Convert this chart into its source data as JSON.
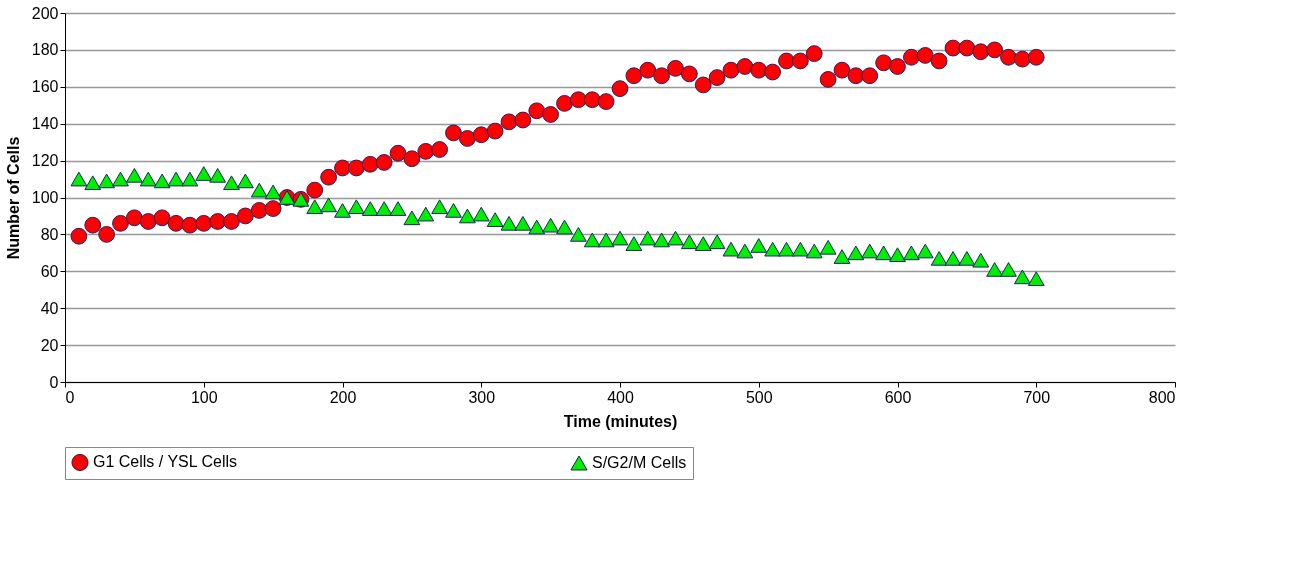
{
  "chart_data": {
    "type": "scatter",
    "xlabel": "Time (minutes)",
    "ylabel": "Number of Cells",
    "x": [
      10,
      20,
      30,
      40,
      50,
      60,
      70,
      80,
      90,
      100,
      110,
      120,
      130,
      140,
      150,
      160,
      170,
      180,
      190,
      200,
      210,
      220,
      230,
      240,
      250,
      260,
      270,
      280,
      290,
      300,
      310,
      320,
      330,
      340,
      350,
      360,
      370,
      380,
      390,
      400,
      410,
      420,
      430,
      440,
      450,
      460,
      470,
      480,
      490,
      500,
      510,
      520,
      530,
      540,
      550,
      560,
      570,
      580,
      590,
      600,
      610,
      620,
      630,
      640,
      650,
      660,
      670,
      680,
      690,
      700
    ],
    "series": [
      {
        "name": "G1 Cells / YSL Cells",
        "color": "#ff0000",
        "marker": "circle",
        "values": [
          79,
          85,
          80,
          86,
          89,
          87,
          89,
          86,
          85,
          86,
          87,
          87,
          90,
          93,
          94,
          100,
          99,
          104,
          111,
          116,
          116,
          118,
          119,
          124,
          121,
          125,
          126,
          135,
          132,
          134,
          136,
          141,
          142,
          147,
          145,
          151,
          153,
          153,
          152,
          159,
          166,
          169,
          166,
          170,
          167,
          161,
          165,
          169,
          171,
          169,
          168,
          174,
          174,
          178,
          164,
          169,
          166,
          166,
          173,
          171,
          176,
          177,
          174,
          181,
          181,
          179,
          180,
          176,
          175,
          176
        ]
      },
      {
        "name": "S/G2/M Cells",
        "color": "#00ee00",
        "marker": "triangle",
        "values": [
          110,
          108,
          109,
          110,
          112,
          110,
          109,
          110,
          110,
          113,
          112,
          108,
          109,
          104,
          103,
          100,
          99,
          95,
          96,
          93,
          95,
          94,
          94,
          94,
          89,
          91,
          95,
          93,
          90,
          91,
          88,
          86,
          86,
          84,
          85,
          84,
          80,
          77,
          77,
          78,
          75,
          78,
          77,
          78,
          76,
          75,
          76,
          72,
          71,
          74,
          72,
          72,
          72,
          71,
          73,
          68,
          70,
          71,
          70,
          69,
          70,
          71,
          67,
          67,
          67,
          66,
          61,
          61,
          57,
          56
        ]
      }
    ],
    "xlim": [
      0,
      800
    ],
    "xticks": [
      0,
      100,
      200,
      300,
      400,
      500,
      600,
      700,
      800
    ],
    "ylim": [
      0,
      200
    ],
    "yticks": [
      0,
      20,
      40,
      60,
      80,
      100,
      120,
      140,
      160,
      180,
      200
    ],
    "grid": "y",
    "legend": "bottom"
  }
}
